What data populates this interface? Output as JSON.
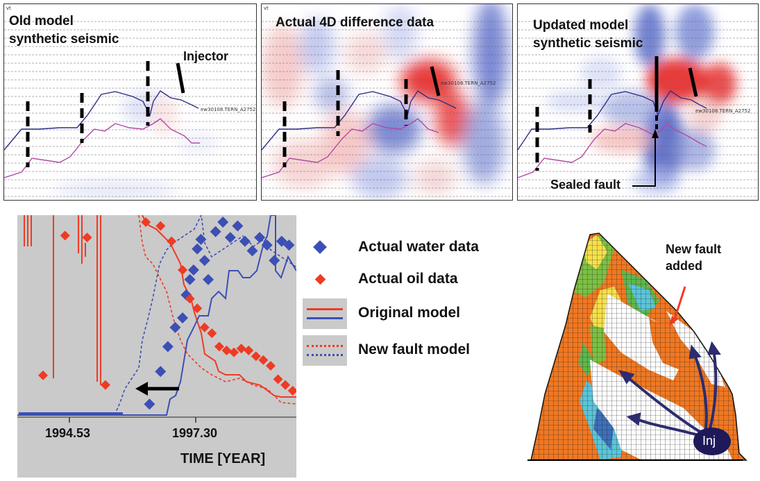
{
  "seismic_panels": [
    {
      "title_line1": "Old model",
      "title_line2": "synthetic seismic",
      "well_label": "vt",
      "trace_label": "ew30108.TERN_A2752"
    },
    {
      "title_line1": "Actual 4D difference data",
      "title_line2": "",
      "well_label": "vt",
      "trace_label": "ew30108.TERN_A2752"
    },
    {
      "title_line1": "Updated model",
      "title_line2": "synthetic seismic",
      "well_label": "",
      "trace_label": "ew30108.TERN_A2752"
    }
  ],
  "annotations": {
    "injector": "Injector",
    "sealed_fault": "Sealed fault",
    "new_fault_line1": "New fault",
    "new_fault_line2": "added",
    "inj": "Inj"
  },
  "chart_data": {
    "type": "scatter",
    "title": "",
    "xlabel": "TIME [YEAR]",
    "ylabel": "",
    "x_tick_labels": [
      "1994.53",
      "1997.30"
    ],
    "xlim": [
      1992.0,
      1999.6
    ],
    "series": [
      {
        "name": "Actual water data",
        "marker": "diamond",
        "color": "#3c4fb4",
        "x": [
          1995.6,
          1995.9,
          1996.1,
          1996.3,
          1996.5,
          1996.6,
          1996.7,
          1996.8,
          1996.9,
          1997.0,
          1997.1,
          1997.2,
          1997.4,
          1997.6,
          1997.8,
          1998.0,
          1998.2,
          1998.4,
          1998.6,
          1998.8,
          1999.0,
          1999.2,
          1999.4
        ],
        "y": [
          0.05,
          0.22,
          0.35,
          0.45,
          0.5,
          0.62,
          0.7,
          0.75,
          0.86,
          0.91,
          0.8,
          0.7,
          0.95,
          1.0,
          0.92,
          0.98,
          0.9,
          0.85,
          0.92,
          0.88,
          0.8,
          0.9,
          0.88
        ]
      },
      {
        "name": "Actual oil data",
        "marker": "diamond",
        "color": "#ee3b24",
        "x": [
          1992.7,
          1993.3,
          1993.9,
          1994.4,
          1995.5,
          1995.9,
          1996.2,
          1996.5,
          1996.7,
          1996.9,
          1997.1,
          1997.3,
          1997.5,
          1997.7,
          1997.9,
          1998.1,
          1998.3,
          1998.5,
          1998.7,
          1998.9,
          1999.1,
          1999.3,
          1999.5
        ],
        "y": [
          0.2,
          0.93,
          0.92,
          0.15,
          1.0,
          0.98,
          0.9,
          0.75,
          0.6,
          0.55,
          0.45,
          0.42,
          0.35,
          0.33,
          0.32,
          0.34,
          0.33,
          0.3,
          0.28,
          0.25,
          0.18,
          0.15,
          0.12
        ]
      }
    ],
    "lines": [
      {
        "name": "Original model",
        "style": "solid",
        "colors": [
          "#ee3b24",
          "#3c4fb4"
        ]
      },
      {
        "name": "New fault model",
        "style": "dotted",
        "colors": [
          "#ee3b24",
          "#3c4fb4"
        ]
      }
    ]
  },
  "legend": [
    {
      "label": "Actual water data"
    },
    {
      "label": "Actual oil data"
    },
    {
      "label": "Original model"
    },
    {
      "label": "New fault model"
    }
  ]
}
